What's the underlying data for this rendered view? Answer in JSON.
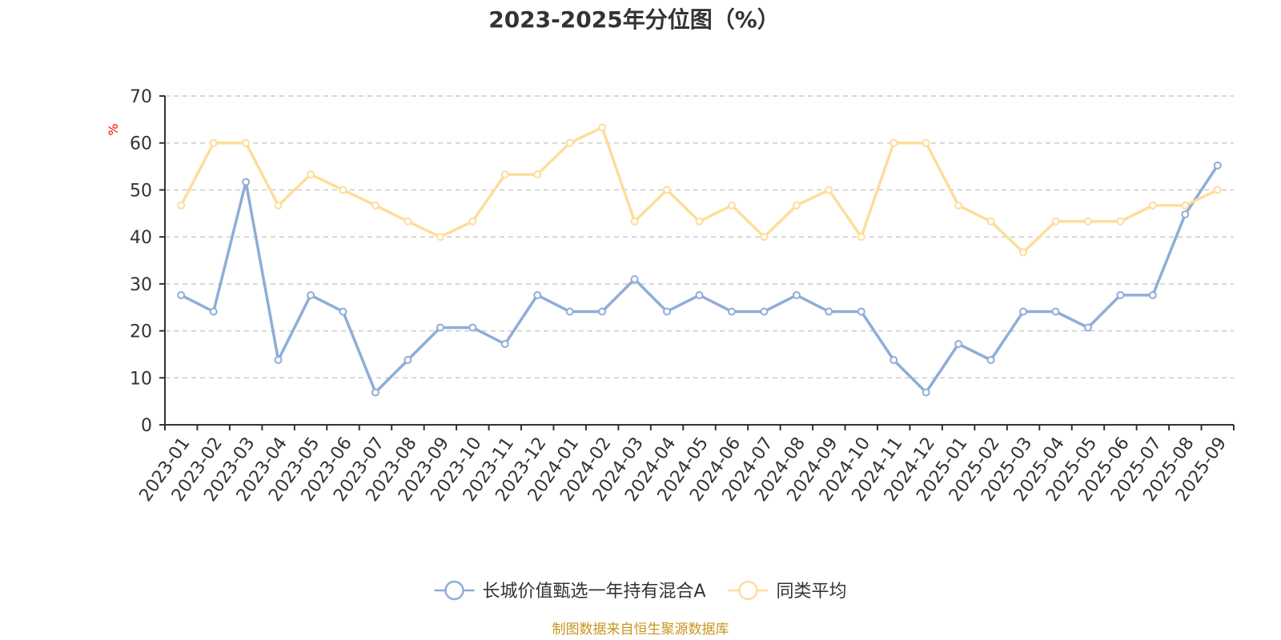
{
  "chart_data": {
    "type": "line",
    "title": "2023-2025年分位图（%）",
    "ylabel": "%",
    "xlabel": "",
    "ylim": [
      0,
      70
    ],
    "yticks": [
      0,
      10,
      20,
      30,
      40,
      50,
      60,
      70
    ],
    "grid": true,
    "legend_position": "bottom-center",
    "categories": [
      "2023-01",
      "2023-02",
      "2023-03",
      "2023-04",
      "2023-05",
      "2023-06",
      "2023-07",
      "2023-08",
      "2023-09",
      "2023-10",
      "2023-11",
      "2023-12",
      "2024-01",
      "2024-02",
      "2024-03",
      "2024-04",
      "2024-05",
      "2024-06",
      "2024-07",
      "2024-08",
      "2024-09",
      "2024-10",
      "2024-11",
      "2024-12",
      "2025-01",
      "2025-02",
      "2025-03",
      "2025-04",
      "2025-05",
      "2025-06",
      "2025-07",
      "2025-08",
      "2025-09"
    ],
    "series": [
      {
        "name": "长城价值甄选一年持有混合A",
        "color": "#8eadd8",
        "values": [
          27.6,
          24.1,
          51.7,
          13.8,
          27.6,
          24.1,
          6.9,
          13.8,
          20.7,
          20.7,
          17.2,
          27.6,
          24.1,
          24.1,
          31.0,
          24.1,
          27.6,
          24.1,
          24.1,
          27.6,
          24.1,
          24.1,
          13.8,
          6.9,
          17.2,
          13.8,
          24.1,
          24.1,
          20.7,
          27.6,
          27.6,
          44.8,
          55.2
        ]
      },
      {
        "name": "同类平均",
        "color": "#fddd9b",
        "values": [
          46.7,
          60.0,
          60.0,
          46.7,
          53.3,
          50.0,
          46.7,
          43.3,
          40.0,
          43.3,
          53.3,
          53.3,
          60.0,
          63.3,
          43.3,
          50.0,
          43.3,
          46.7,
          40.0,
          46.7,
          50.0,
          40.0,
          60.0,
          60.0,
          46.7,
          43.3,
          36.7,
          43.3,
          43.3,
          43.3,
          46.7,
          46.7,
          50.0
        ]
      }
    ],
    "source": "制图数据来自恒生聚源数据库",
    "colors": {
      "axis": "#333333",
      "grid": "#cccccc",
      "unit": "#ff0000",
      "source": "#c8961e",
      "title": "#333333"
    }
  }
}
